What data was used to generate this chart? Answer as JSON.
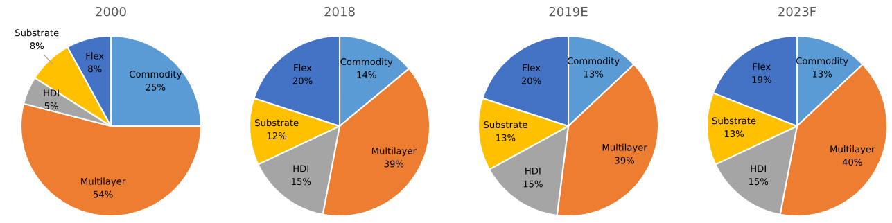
{
  "chart_data": [
    {
      "type": "pie",
      "title": "2000",
      "categories": [
        "Commodity",
        "Multilayer",
        "HDI",
        "Substrate",
        "Flex"
      ],
      "values": [
        25,
        54,
        5,
        8,
        8
      ],
      "value_labels": [
        "25%",
        "54%",
        "5%",
        "8%",
        "8%"
      ],
      "colors": [
        "#5b9bd5",
        "#ed7d31",
        "#a5a5a5",
        "#ffc000",
        "#4472c4"
      ]
    },
    {
      "type": "pie",
      "title": "2018",
      "categories": [
        "Commodity",
        "Multilayer",
        "HDI",
        "Substrate",
        "Flex"
      ],
      "values": [
        14,
        39,
        15,
        12,
        20
      ],
      "value_labels": [
        "14%",
        "39%",
        "15%",
        "12%",
        "20%"
      ],
      "colors": [
        "#5b9bd5",
        "#ed7d31",
        "#a5a5a5",
        "#ffc000",
        "#4472c4"
      ]
    },
    {
      "type": "pie",
      "title": "2019E",
      "categories": [
        "Commodity",
        "Multilayer",
        "HDI",
        "Substrate",
        "Flex"
      ],
      "values": [
        13,
        39,
        15,
        13,
        20
      ],
      "value_labels": [
        "13%",
        "39%",
        "15%",
        "13%",
        "20%"
      ],
      "colors": [
        "#5b9bd5",
        "#ed7d31",
        "#a5a5a5",
        "#ffc000",
        "#4472c4"
      ]
    },
    {
      "type": "pie",
      "title": "2023F",
      "categories": [
        "Commodity",
        "Multilayer",
        "HDI",
        "Substrate",
        "Flex"
      ],
      "values": [
        13,
        40,
        15,
        13,
        19
      ],
      "value_labels": [
        "13%",
        "40%",
        "15%",
        "13%",
        "19%"
      ],
      "colors": [
        "#5b9bd5",
        "#ed7d31",
        "#a5a5a5",
        "#ffc000",
        "#4472c4"
      ]
    }
  ]
}
